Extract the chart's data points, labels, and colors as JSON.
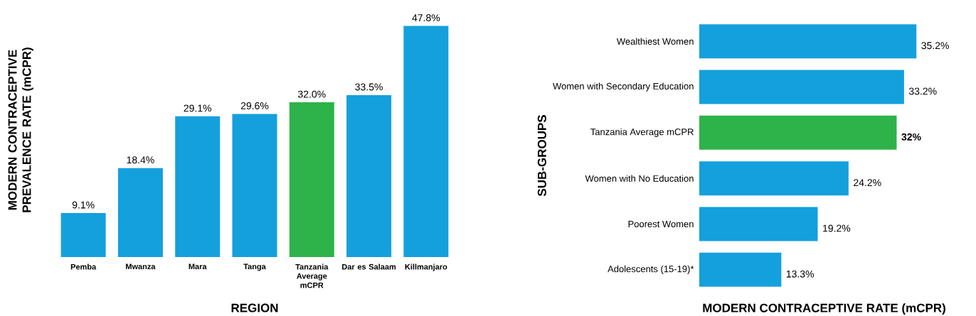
{
  "chart_data": [
    {
      "type": "bar",
      "xlabel": "REGION",
      "ylabel": "MODERN CONTRACEPTIVE PREVALENCE RATE (mCPR)",
      "categories": [
        "Pemba",
        "Mwanza",
        "Mara",
        "Tanga",
        "Tanzania Average mCPR",
        "Dar es Salaam",
        "Killmanjaro"
      ],
      "values": [
        9.1,
        18.4,
        29.1,
        29.6,
        32.0,
        33.5,
        47.8
      ],
      "value_labels": [
        "9.1%",
        "18.4%",
        "29.1%",
        "29.6%",
        "32.0%",
        "33.5%",
        "47.8%"
      ],
      "colors": [
        "#14a0dc",
        "#14a0dc",
        "#14a0dc",
        "#14a0dc",
        "#2db34a",
        "#14a0dc",
        "#14a0dc"
      ]
    },
    {
      "type": "bar",
      "orientation": "horizontal",
      "xlabel": "MODERN CONTRACEPTIVE RATE (mCPR)",
      "ylabel": "SUB-GROUPS",
      "categories": [
        "Wealthiest Women",
        "Women with Secondary Education",
        "Tanzania Average mCPR",
        "Women with No Education",
        "Poorest Women",
        "Adolescents (15-19)*"
      ],
      "values": [
        35.2,
        33.2,
        32,
        24.2,
        19.2,
        13.3
      ],
      "value_labels": [
        "35.2%",
        "33.2%",
        "**32%**",
        "24.2%",
        "19.2%",
        "13.3%"
      ],
      "colors": [
        "#14a0dc",
        "#14a0dc",
        "#2db34a",
        "#14a0dc",
        "#14a0dc",
        "#14a0dc"
      ]
    }
  ]
}
